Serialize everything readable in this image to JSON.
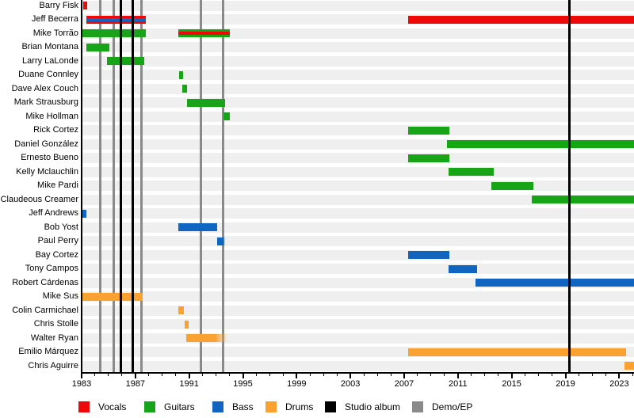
{
  "chart_data": {
    "type": "timeline",
    "description": "Band members timeline with role bars and release lines",
    "x_axis": {
      "start": 1983,
      "end": 2024.1,
      "major_ticks": [
        1983,
        1987,
        1991,
        1995,
        1999,
        2003,
        2007,
        2011,
        2015,
        2019,
        2023
      ],
      "minor_tick_interval": 1
    },
    "rows": [
      {
        "name": "Barry Fisk",
        "bars": [
          {
            "start": 1983.1,
            "end": 1983.4,
            "role": "vocals"
          }
        ]
      },
      {
        "name": "Jeff Becerra",
        "bars": [
          {
            "start": 1983.35,
            "end": 1987.75,
            "role": "vocals",
            "stripe_role": "bass"
          },
          {
            "start": 2007.3,
            "end": 2024.1,
            "role": "vocals"
          }
        ]
      },
      {
        "name": "Mike Torrão",
        "bars": [
          {
            "start": 1983.05,
            "end": 1987.75,
            "role": "guitars"
          },
          {
            "start": 1990.2,
            "end": 1994.0,
            "role": "guitars",
            "stripe_role": "vocals"
          }
        ]
      },
      {
        "name": "Brian Montana",
        "bars": [
          {
            "start": 1983.35,
            "end": 1985.05,
            "role": "guitars"
          }
        ]
      },
      {
        "name": "Larry LaLonde",
        "bars": [
          {
            "start": 1984.9,
            "end": 1987.65,
            "role": "guitars"
          }
        ]
      },
      {
        "name": "Duane Connley",
        "bars": [
          {
            "start": 1990.25,
            "end": 1990.55,
            "role": "guitars"
          }
        ]
      },
      {
        "name": "Dave Alex Couch",
        "bars": [
          {
            "start": 1990.5,
            "end": 1990.85,
            "role": "guitars"
          }
        ]
      },
      {
        "name": "Mark Strausburg",
        "bars": [
          {
            "start": 1990.85,
            "end": 1993.65,
            "role": "guitars"
          }
        ]
      },
      {
        "name": "Mike Hollman",
        "bars": [
          {
            "start": 1993.55,
            "end": 1994.0,
            "role": "guitars"
          }
        ]
      },
      {
        "name": "Rick Cortez",
        "bars": [
          {
            "start": 2007.3,
            "end": 2010.35,
            "role": "guitars"
          }
        ]
      },
      {
        "name": "Daniel González",
        "bars": [
          {
            "start": 2010.2,
            "end": 2024.1,
            "role": "guitars"
          }
        ]
      },
      {
        "name": "Ernesto Bueno",
        "bars": [
          {
            "start": 2007.3,
            "end": 2010.35,
            "role": "guitars"
          }
        ]
      },
      {
        "name": "Kelly Mclauchlin",
        "bars": [
          {
            "start": 2010.3,
            "end": 2013.65,
            "role": "guitars"
          }
        ]
      },
      {
        "name": "Mike Pardi",
        "bars": [
          {
            "start": 2013.5,
            "end": 2016.6,
            "role": "guitars"
          }
        ]
      },
      {
        "name": "Claudeous Creamer",
        "bars": [
          {
            "start": 2016.5,
            "end": 2024.1,
            "role": "guitars"
          }
        ]
      },
      {
        "name": "Jeff Andrews",
        "bars": [
          {
            "start": 1983.05,
            "end": 1983.35,
            "role": "bass"
          }
        ]
      },
      {
        "name": "Bob Yost",
        "bars": [
          {
            "start": 1990.2,
            "end": 1993.1,
            "role": "bass"
          }
        ]
      },
      {
        "name": "Paul Perry",
        "bars": [
          {
            "start": 1993.1,
            "end": 1993.7,
            "role": "bass",
            "fade_end": true
          }
        ]
      },
      {
        "name": "Bay Cortez",
        "bars": [
          {
            "start": 2007.3,
            "end": 2010.35,
            "role": "bass"
          }
        ]
      },
      {
        "name": "Tony Campos",
        "bars": [
          {
            "start": 2010.3,
            "end": 2012.4,
            "role": "bass"
          }
        ]
      },
      {
        "name": "Robert Cárdenas",
        "bars": [
          {
            "start": 2012.3,
            "end": 2024.1,
            "role": "bass"
          }
        ]
      },
      {
        "name": "Mike Sus",
        "bars": [
          {
            "start": 1983.05,
            "end": 1987.55,
            "role": "drums"
          }
        ]
      },
      {
        "name": "Colin Carmichael",
        "bars": [
          {
            "start": 1990.2,
            "end": 1990.6,
            "role": "drums"
          }
        ]
      },
      {
        "name": "Chris Stolle",
        "bars": [
          {
            "start": 1990.65,
            "end": 1990.95,
            "role": "drums"
          }
        ]
      },
      {
        "name": "Walter Ryan",
        "bars": [
          {
            "start": 1990.8,
            "end": 1993.85,
            "role": "drums",
            "fade_end": true
          }
        ]
      },
      {
        "name": "Emilio Márquez",
        "bars": [
          {
            "start": 2007.3,
            "end": 2023.5,
            "role": "drums"
          }
        ]
      },
      {
        "name": "Chris Aguirre",
        "bars": [
          {
            "start": 2023.4,
            "end": 2024.1,
            "role": "drums"
          }
        ]
      }
    ],
    "release_lines": [
      {
        "year": 1984.4,
        "type": "demo_ep"
      },
      {
        "year": 1985.4,
        "type": "demo_ep"
      },
      {
        "year": 1985.9,
        "type": "studio_album"
      },
      {
        "year": 1986.8,
        "type": "studio_album"
      },
      {
        "year": 1987.45,
        "type": "demo_ep"
      },
      {
        "year": 1991.9,
        "type": "demo_ep"
      },
      {
        "year": 1993.5,
        "type": "demo_ep"
      },
      {
        "year": 2019.3,
        "type": "studio_album"
      }
    ],
    "legend": [
      {
        "label": "Vocals",
        "color_key": "vocals"
      },
      {
        "label": "Guitars",
        "color_key": "guitars"
      },
      {
        "label": "Bass",
        "color_key": "bass"
      },
      {
        "label": "Drums",
        "color_key": "drums"
      },
      {
        "label": "Studio album",
        "color_key": "studio_album"
      },
      {
        "label": "Demo/EP",
        "color_key": "demo_ep"
      }
    ]
  },
  "colors": {
    "vocals": "#ee0808",
    "guitars": "#17a517",
    "bass": "#1065c0",
    "drums": "#f9a232",
    "studio_album": "#000000",
    "demo_ep": "#8a8a8a",
    "row_stripe": "#efefef",
    "axis": "#000000"
  }
}
